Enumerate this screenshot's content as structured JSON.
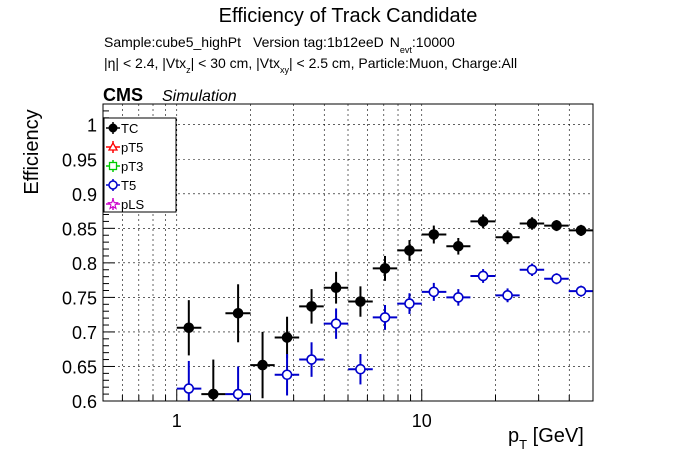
{
  "chart_data": {
    "type": "scatter",
    "title": "Efficiency of Track Candidate",
    "info_line1": {
      "sample": "Sample:cube5_highPt",
      "version": "Version tag:1b12eeD",
      "n_label": "N",
      "n_sub": "evt",
      "n_value": ":10000"
    },
    "info_line2": {
      "eta": "|η| < 2.4, |Vtx",
      "z_sub": "z",
      "mid": "| < 30 cm, |Vtx",
      "xy_sub": "xy",
      "tail": "| < 2.5 cm, Particle:Muon, Charge:All"
    },
    "cms_label": "CMS",
    "sim_label": "Simulation",
    "ylabel": "Efficiency",
    "xlabel_main": "p",
    "xlabel_sub": "T",
    "xlabel_unit": " [GeV]",
    "x_scale": "log",
    "xlim": [
      0.5,
      50
    ],
    "ylim": [
      0.6,
      1.03
    ],
    "grid": true,
    "x_ticks": [
      {
        "value": 1,
        "label": "1"
      },
      {
        "value": 10,
        "label": "10"
      }
    ],
    "y_ticks": [
      {
        "value": 0.6,
        "label": "0.6"
      },
      {
        "value": 0.65,
        "label": "0.65"
      },
      {
        "value": 0.7,
        "label": "0.7"
      },
      {
        "value": 0.75,
        "label": "0.75"
      },
      {
        "value": 0.8,
        "label": "0.8"
      },
      {
        "value": 0.85,
        "label": "0.85"
      },
      {
        "value": 0.9,
        "label": "0.9"
      },
      {
        "value": 0.95,
        "label": "0.95"
      },
      {
        "value": 1,
        "label": "1"
      }
    ],
    "legend_position": "top-left",
    "series": [
      {
        "name": "TC",
        "color": "#000000",
        "marker": "filled-circle",
        "points": [
          {
            "x": 1.12,
            "xlo": 1.0,
            "xhi": 1.26,
            "y": 0.706,
            "elo": 0.04,
            "ehi": 0.04
          },
          {
            "x": 1.41,
            "xlo": 1.26,
            "xhi": 1.58,
            "y": 0.61,
            "elo": 0.05,
            "ehi": 0.05
          },
          {
            "x": 1.78,
            "xlo": 1.58,
            "xhi": 2.0,
            "y": 0.727,
            "elo": 0.042,
            "ehi": 0.042
          },
          {
            "x": 2.24,
            "xlo": 2.0,
            "xhi": 2.51,
            "y": 0.652,
            "elo": 0.048,
            "ehi": 0.048
          },
          {
            "x": 2.82,
            "xlo": 2.51,
            "xhi": 3.16,
            "y": 0.692,
            "elo": 0.03,
            "ehi": 0.03
          },
          {
            "x": 3.55,
            "xlo": 3.16,
            "xhi": 3.98,
            "y": 0.737,
            "elo": 0.025,
            "ehi": 0.025
          },
          {
            "x": 4.47,
            "xlo": 3.98,
            "xhi": 5.01,
            "y": 0.764,
            "elo": 0.023,
            "ehi": 0.023
          },
          {
            "x": 5.62,
            "xlo": 5.01,
            "xhi": 6.31,
            "y": 0.744,
            "elo": 0.022,
            "ehi": 0.022
          },
          {
            "x": 7.08,
            "xlo": 6.31,
            "xhi": 7.94,
            "y": 0.792,
            "elo": 0.018,
            "ehi": 0.018
          },
          {
            "x": 8.91,
            "xlo": 7.94,
            "xhi": 10.0,
            "y": 0.818,
            "elo": 0.015,
            "ehi": 0.015
          },
          {
            "x": 11.2,
            "xlo": 10.0,
            "xhi": 12.6,
            "y": 0.841,
            "elo": 0.013,
            "ehi": 0.013
          },
          {
            "x": 14.1,
            "xlo": 12.6,
            "xhi": 15.8,
            "y": 0.824,
            "elo": 0.012,
            "ehi": 0.012
          },
          {
            "x": 17.8,
            "xlo": 15.8,
            "xhi": 20.0,
            "y": 0.86,
            "elo": 0.01,
            "ehi": 0.01
          },
          {
            "x": 22.4,
            "xlo": 20.0,
            "xhi": 25.1,
            "y": 0.837,
            "elo": 0.01,
            "ehi": 0.01
          },
          {
            "x": 28.2,
            "xlo": 25.1,
            "xhi": 31.6,
            "y": 0.857,
            "elo": 0.009,
            "ehi": 0.009
          },
          {
            "x": 35.5,
            "xlo": 31.6,
            "xhi": 39.8,
            "y": 0.854,
            "elo": 0.008,
            "ehi": 0.008
          },
          {
            "x": 44.7,
            "xlo": 39.8,
            "xhi": 50.1,
            "y": 0.847,
            "elo": 0.008,
            "ehi": 0.008
          }
        ]
      },
      {
        "name": "pT5",
        "color": "#ff0000",
        "marker": "open-triangle",
        "points": []
      },
      {
        "name": "pT3",
        "color": "#00cc00",
        "marker": "open-square",
        "points": []
      },
      {
        "name": "T5",
        "color": "#0000cc",
        "marker": "open-circle",
        "points": [
          {
            "x": 1.12,
            "xlo": 1.0,
            "xhi": 1.26,
            "y": 0.618,
            "elo": 0.04,
            "ehi": 0.04
          },
          {
            "x": 1.78,
            "xlo": 1.58,
            "xhi": 2.0,
            "y": 0.61,
            "elo": 0.04,
            "ehi": 0.04
          },
          {
            "x": 2.82,
            "xlo": 2.51,
            "xhi": 3.16,
            "y": 0.638,
            "elo": 0.03,
            "ehi": 0.03
          },
          {
            "x": 3.55,
            "xlo": 3.16,
            "xhi": 3.98,
            "y": 0.66,
            "elo": 0.025,
            "ehi": 0.025
          },
          {
            "x": 4.47,
            "xlo": 3.98,
            "xhi": 5.01,
            "y": 0.712,
            "elo": 0.022,
            "ehi": 0.022
          },
          {
            "x": 5.62,
            "xlo": 5.01,
            "xhi": 6.31,
            "y": 0.646,
            "elo": 0.022,
            "ehi": 0.022
          },
          {
            "x": 7.08,
            "xlo": 6.31,
            "xhi": 7.94,
            "y": 0.721,
            "elo": 0.018,
            "ehi": 0.018
          },
          {
            "x": 8.91,
            "xlo": 7.94,
            "xhi": 10.0,
            "y": 0.741,
            "elo": 0.015,
            "ehi": 0.015
          },
          {
            "x": 11.2,
            "xlo": 10.0,
            "xhi": 12.6,
            "y": 0.758,
            "elo": 0.013,
            "ehi": 0.013
          },
          {
            "x": 14.1,
            "xlo": 12.6,
            "xhi": 15.8,
            "y": 0.75,
            "elo": 0.012,
            "ehi": 0.012
          },
          {
            "x": 17.8,
            "xlo": 15.8,
            "xhi": 20.0,
            "y": 0.781,
            "elo": 0.01,
            "ehi": 0.01
          },
          {
            "x": 22.4,
            "xlo": 20.0,
            "xhi": 25.1,
            "y": 0.753,
            "elo": 0.01,
            "ehi": 0.01
          },
          {
            "x": 28.2,
            "xlo": 25.1,
            "xhi": 31.6,
            "y": 0.79,
            "elo": 0.009,
            "ehi": 0.009
          },
          {
            "x": 35.5,
            "xlo": 31.6,
            "xhi": 39.8,
            "y": 0.777,
            "elo": 0.008,
            "ehi": 0.008
          },
          {
            "x": 44.7,
            "xlo": 39.8,
            "xhi": 50.1,
            "y": 0.759,
            "elo": 0.008,
            "ehi": 0.008
          }
        ]
      },
      {
        "name": "pLS",
        "color": "#cc00cc",
        "marker": "open-star",
        "points": []
      }
    ]
  }
}
